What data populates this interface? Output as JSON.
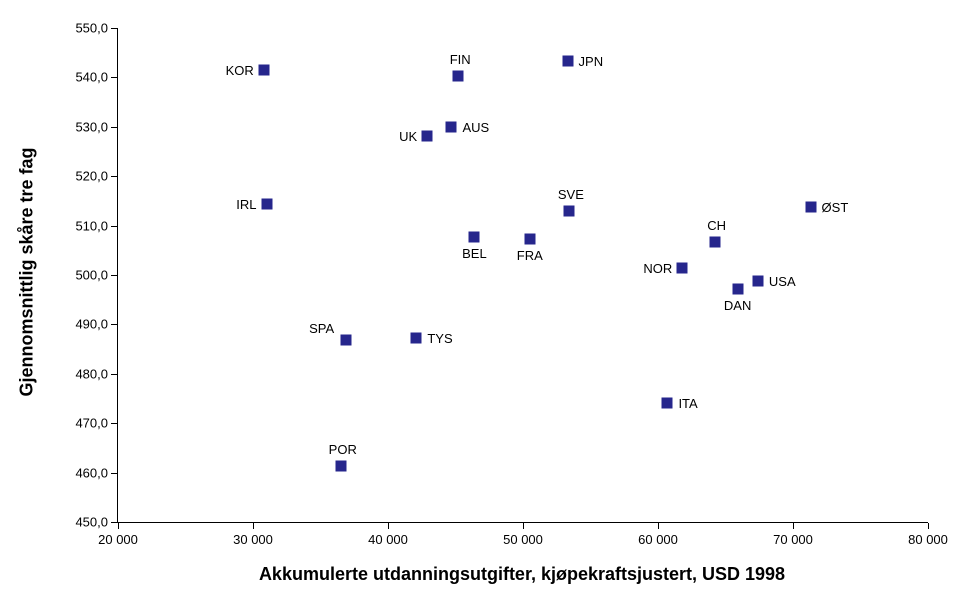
{
  "chart_data": {
    "type": "scatter",
    "xlabel": "Akkumulerte utdanningsutgifter, kjøpekraftsjustert, USD 1998",
    "ylabel": "Gjennomsnittlig skåre tre fag",
    "xlim": [
      20000,
      80000
    ],
    "ylim": [
      450,
      550
    ],
    "grid": false,
    "legend": false,
    "marker_shape": "square",
    "marker_color": "#26268C",
    "background_color": "#FFFFFF",
    "x_ticks": [
      {
        "value": 20000,
        "label": "20 000"
      },
      {
        "value": 30000,
        "label": "30 000"
      },
      {
        "value": 40000,
        "label": "40 000"
      },
      {
        "value": 50000,
        "label": "50 000"
      },
      {
        "value": 60000,
        "label": "60 000"
      },
      {
        "value": 70000,
        "label": "70 000"
      },
      {
        "value": 80000,
        "label": "80 000"
      }
    ],
    "y_ticks": [
      {
        "value": 450,
        "label": "450,0"
      },
      {
        "value": 460,
        "label": "460,0"
      },
      {
        "value": 470,
        "label": "470,0"
      },
      {
        "value": 480,
        "label": "480,0"
      },
      {
        "value": 490,
        "label": "490,0"
      },
      {
        "value": 500,
        "label": "500,0"
      },
      {
        "value": 510,
        "label": "510,0"
      },
      {
        "value": 520,
        "label": "520,0"
      },
      {
        "value": 530,
        "label": "530,0"
      },
      {
        "value": 540,
        "label": "540,0"
      },
      {
        "value": 550,
        "label": "550,0"
      }
    ],
    "points": [
      {
        "code": "KOR",
        "x": 30800,
        "y": 541.5,
        "label_pos": "left"
      },
      {
        "code": "FIN",
        "x": 45200,
        "y": 540.2,
        "label_pos": "above"
      },
      {
        "code": "JPN",
        "x": 53300,
        "y": 543.3,
        "label_pos": "right"
      },
      {
        "code": "UK",
        "x": 42900,
        "y": 528.1,
        "label_pos": "left"
      },
      {
        "code": "AUS",
        "x": 44700,
        "y": 530.0,
        "label_pos": "right"
      },
      {
        "code": "IRL",
        "x": 31000,
        "y": 514.4,
        "label_pos": "left"
      },
      {
        "code": "SVE",
        "x": 53400,
        "y": 512.9,
        "label_pos": "above"
      },
      {
        "code": "ØST",
        "x": 71300,
        "y": 513.7,
        "label_pos": "right"
      },
      {
        "code": "CH",
        "x": 64200,
        "y": 506.6,
        "label_pos": "above"
      },
      {
        "code": "BEL",
        "x": 46400,
        "y": 507.7,
        "label_pos": "below"
      },
      {
        "code": "FRA",
        "x": 50500,
        "y": 507.3,
        "label_pos": "below"
      },
      {
        "code": "NOR",
        "x": 61800,
        "y": 501.4,
        "label_pos": "left"
      },
      {
        "code": "USA",
        "x": 67400,
        "y": 498.8,
        "label_pos": "right"
      },
      {
        "code": "DAN",
        "x": 65900,
        "y": 497.2,
        "label_pos": "below"
      },
      {
        "code": "SPA",
        "x": 36900,
        "y": 486.8,
        "label_pos": "above-left"
      },
      {
        "code": "TYS",
        "x": 42100,
        "y": 487.2,
        "label_pos": "right"
      },
      {
        "code": "ITA",
        "x": 60700,
        "y": 474.1,
        "label_pos": "right"
      },
      {
        "code": "POR",
        "x": 36500,
        "y": 461.3,
        "label_pos": "above"
      }
    ]
  }
}
